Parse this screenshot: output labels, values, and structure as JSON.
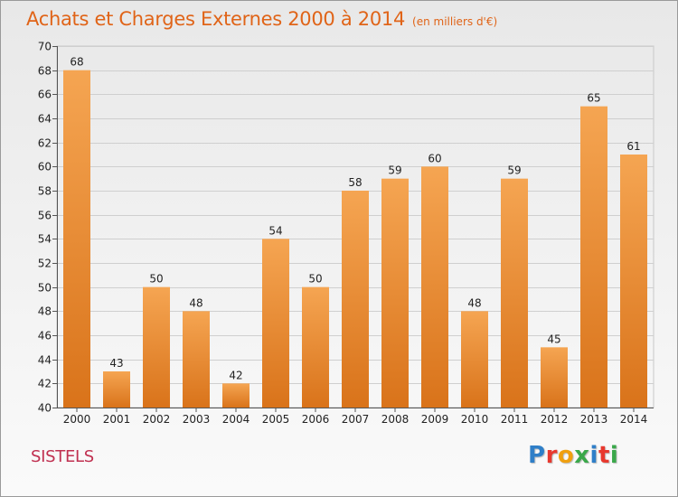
{
  "header": {
    "title": "Achats et Charges Externes 2000 à 2014",
    "subtitle": "(en milliers d'€)"
  },
  "footer": {
    "location": "SISTELS",
    "logo_text": "Proxiti",
    "logo_colors": [
      "#2f7fc8",
      "#e8382e",
      "#f0a010",
      "#3aa84a",
      "#2f7fc8",
      "#e8382e",
      "#3aa84a"
    ]
  },
  "colors": {
    "bar_top": "#f5a552",
    "bar_bottom": "#d9731a",
    "title": "#e06418",
    "location": "#c03050"
  },
  "chart_data": {
    "type": "bar",
    "title": "Achats et Charges Externes 2000 à 2014",
    "subtitle": "(en milliers d'€)",
    "xlabel": "",
    "ylabel": "",
    "categories": [
      "2000",
      "2001",
      "2002",
      "2003",
      "2004",
      "2005",
      "2006",
      "2007",
      "2008",
      "2009",
      "2010",
      "2011",
      "2012",
      "2013",
      "2014"
    ],
    "values": [
      68,
      43,
      50,
      48,
      42,
      54,
      50,
      58,
      59,
      60,
      48,
      59,
      45,
      65,
      61
    ],
    "ylim": [
      40,
      70
    ],
    "yticks": [
      40,
      42,
      44,
      46,
      48,
      50,
      52,
      54,
      56,
      58,
      60,
      62,
      64,
      66,
      68,
      70
    ],
    "grid": true,
    "legend": "none"
  }
}
